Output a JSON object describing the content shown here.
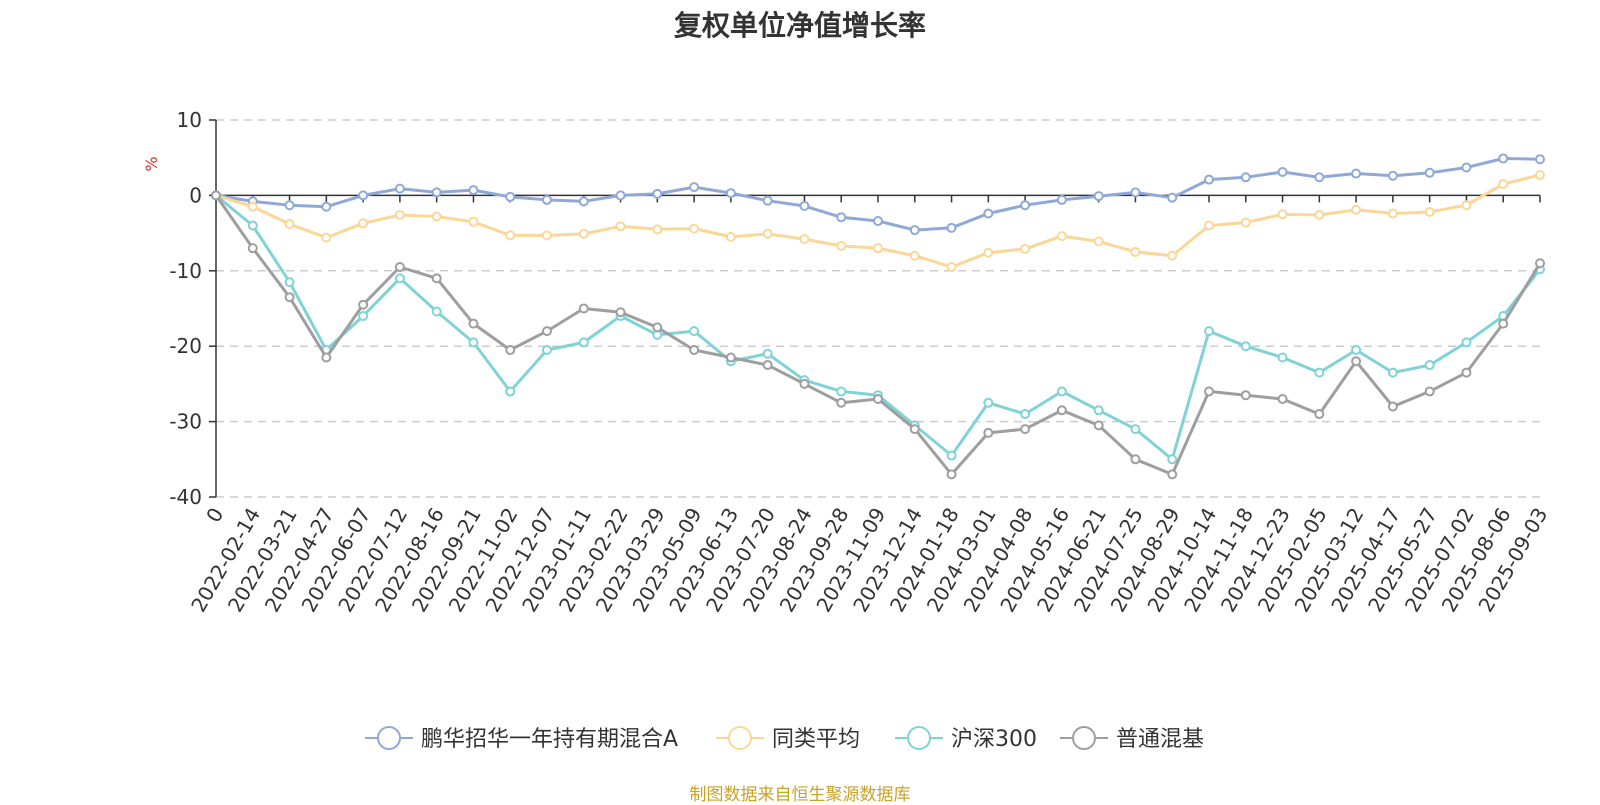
{
  "chart_data": {
    "type": "line",
    "title": "复权单位净值增长率",
    "ylabel": "%",
    "ylim": [
      -40,
      10
    ],
    "yticks": [
      10,
      0,
      -10,
      -20,
      -30,
      -40
    ],
    "grid": true,
    "legend_position": "bottom",
    "x_labels": [
      "0",
      "2022-02-14",
      "2022-03-21",
      "2022-04-27",
      "2022-06-07",
      "2022-07-12",
      "2022-08-16",
      "2022-09-21",
      "2022-11-02",
      "2022-12-07",
      "2023-01-11",
      "2023-02-22",
      "2023-03-29",
      "2023-05-09",
      "2023-06-13",
      "2023-07-20",
      "2023-08-24",
      "2023-09-28",
      "2023-11-09",
      "2023-12-14",
      "2024-01-18",
      "2024-03-01",
      "2024-04-08",
      "2024-05-16",
      "2024-06-21",
      "2024-07-25",
      "2024-08-29",
      "2024-10-14",
      "2024-11-18",
      "2024-12-23",
      "2025-02-05",
      "2025-03-12",
      "2025-04-17",
      "2025-05-27",
      "2025-07-02",
      "2025-08-06",
      "2025-09-03"
    ],
    "series": [
      {
        "name": "鹏华招华一年持有期混合A",
        "color": "#8fa8d8",
        "values": [
          0,
          -0.8,
          -1.3,
          -1.5,
          0.0,
          0.9,
          0.4,
          0.7,
          -0.2,
          -0.6,
          -0.8,
          0.0,
          0.2,
          1.1,
          0.3,
          -0.7,
          -1.4,
          -2.9,
          -3.4,
          -4.6,
          -4.3,
          -2.4,
          -1.3,
          -0.6,
          -0.1,
          0.4,
          -0.3,
          2.1,
          2.4,
          3.1,
          2.4,
          2.9,
          2.6,
          3.0,
          3.7,
          4.9,
          4.8
        ]
      },
      {
        "name": "同类平均",
        "color": "#fad797",
        "values": [
          0,
          -1.5,
          -3.8,
          -5.6,
          -3.7,
          -2.6,
          -2.8,
          -3.5,
          -5.3,
          -5.3,
          -5.1,
          -4.1,
          -4.5,
          -4.4,
          -5.5,
          -5.1,
          -5.8,
          -6.7,
          -7.0,
          -8.0,
          -9.5,
          -7.6,
          -7.1,
          -5.4,
          -6.1,
          -7.5,
          -8.0,
          -4.0,
          -3.6,
          -2.5,
          -2.6,
          -1.9,
          -2.4,
          -2.2,
          -1.3,
          1.5,
          2.7
        ]
      },
      {
        "name": "沪深300",
        "color": "#7fd3d6",
        "values": [
          0,
          -4.0,
          -11.5,
          -20.5,
          -16.0,
          -11.0,
          -15.4,
          -19.5,
          -26.0,
          -20.5,
          -19.5,
          -16.0,
          -18.5,
          -18.0,
          -22.0,
          -21.0,
          -24.5,
          -26.0,
          -26.5,
          -30.5,
          -34.5,
          -27.5,
          -29.0,
          -26.0,
          -28.5,
          -31.0,
          -35.0,
          -18.0,
          -20.0,
          -21.5,
          -23.5,
          -20.5,
          -23.5,
          -22.5,
          -19.5,
          -16.0,
          -9.8
        ]
      },
      {
        "name": "普通混基",
        "color": "#9e9e9e",
        "values": [
          0,
          -7.0,
          -13.5,
          -21.5,
          -14.5,
          -9.5,
          -11.0,
          -17.0,
          -20.5,
          -18.0,
          -15.0,
          -15.5,
          -17.5,
          -20.5,
          -21.5,
          -22.5,
          -25.0,
          -27.5,
          -27.0,
          -31.0,
          -37.0,
          -31.5,
          -31.0,
          -28.5,
          -30.5,
          -35.0,
          -37.0,
          -26.0,
          -26.5,
          -27.0,
          -29.0,
          -22.0,
          -28.0,
          -26.0,
          -23.5,
          -17.0,
          -9.0
        ]
      }
    ]
  },
  "source_note": "制图数据来自恒生聚源数据库"
}
